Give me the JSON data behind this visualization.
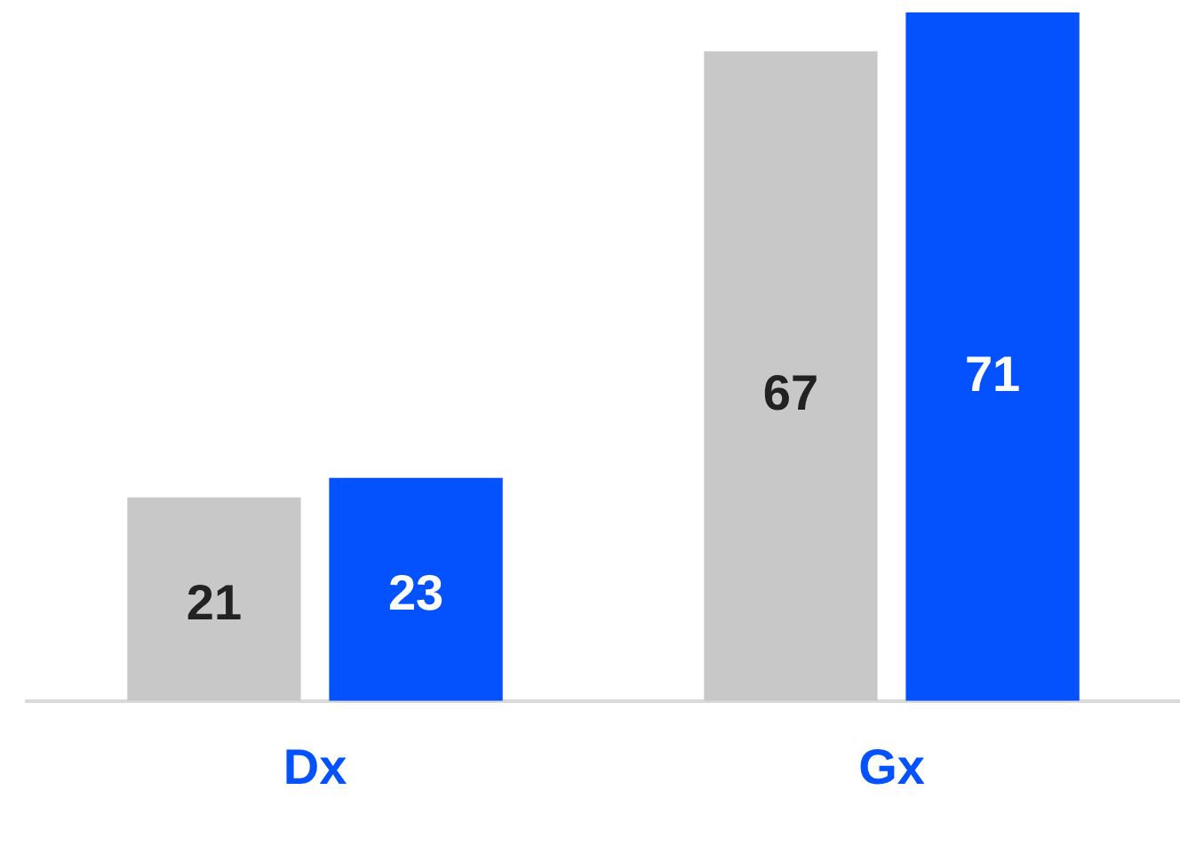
{
  "chart_data": {
    "type": "bar",
    "categories": [
      "Dx",
      "Gx"
    ],
    "series": [
      {
        "color": "#c8c8c8",
        "values": [
          21,
          67
        ]
      },
      {
        "color": "#0452fe",
        "values": [
          23,
          71
        ]
      }
    ],
    "data_labels": true,
    "legend": false
  }
}
